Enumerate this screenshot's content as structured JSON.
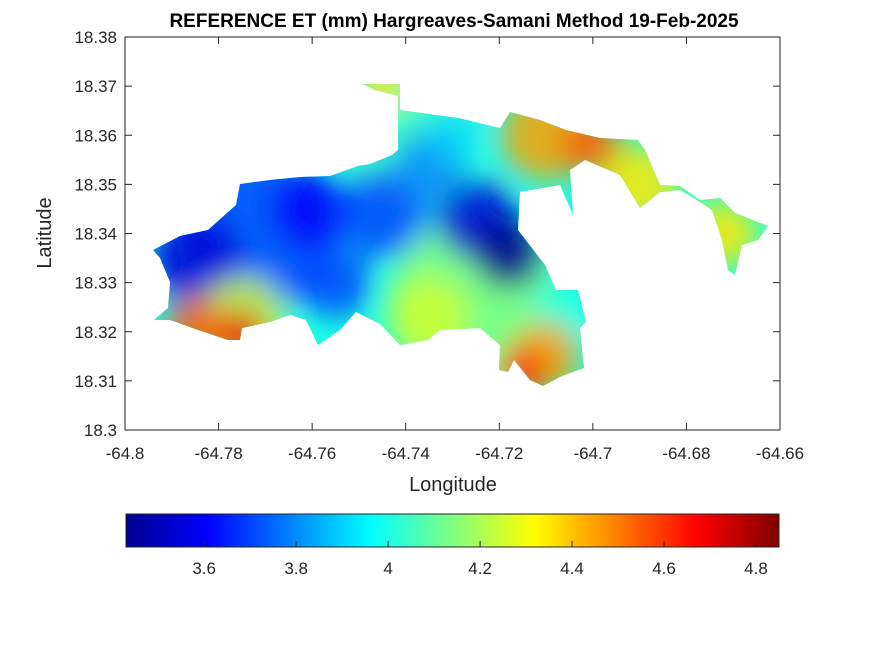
{
  "chart_data": {
    "type": "heatmap",
    "title": "REFERENCE ET (mm) Hargreaves-Samani Method  19-Feb-2025",
    "xlabel": "Longitude",
    "ylabel": "Latitude",
    "xlim": [
      -64.8,
      -64.66
    ],
    "ylim": [
      18.3,
      18.38
    ],
    "x_ticks": [
      "-64.8",
      "-64.78",
      "-64.76",
      "-64.74",
      "-64.72",
      "-64.7",
      "-64.68",
      "-64.66"
    ],
    "y_ticks": [
      "18.3",
      "18.31",
      "18.32",
      "18.33",
      "18.34",
      "18.35",
      "18.36",
      "18.37",
      "18.38"
    ],
    "colorbar": {
      "colormap": "jet",
      "range": [
        3.43,
        4.85
      ],
      "ticks": [
        "3.6",
        "3.8",
        "4",
        "4.2",
        "4.4",
        "4.6",
        "4.8"
      ],
      "orientation": "horizontal",
      "placement": "below"
    },
    "value_pattern": [
      {
        "region": "northwest interior",
        "approx_value": 3.6
      },
      {
        "region": "center (around -64.72, 18.335)",
        "approx_value": 3.45
      },
      {
        "region": "south coast west",
        "approx_value": 4.7
      },
      {
        "region": "southeast coast",
        "approx_value": 4.6
      },
      {
        "region": "northeast",
        "approx_value": 4.45
      },
      {
        "region": "eastern strip",
        "approx_value": 4.35
      }
    ]
  },
  "colors": {
    "axis": "#262626",
    "background": "#ffffff"
  }
}
